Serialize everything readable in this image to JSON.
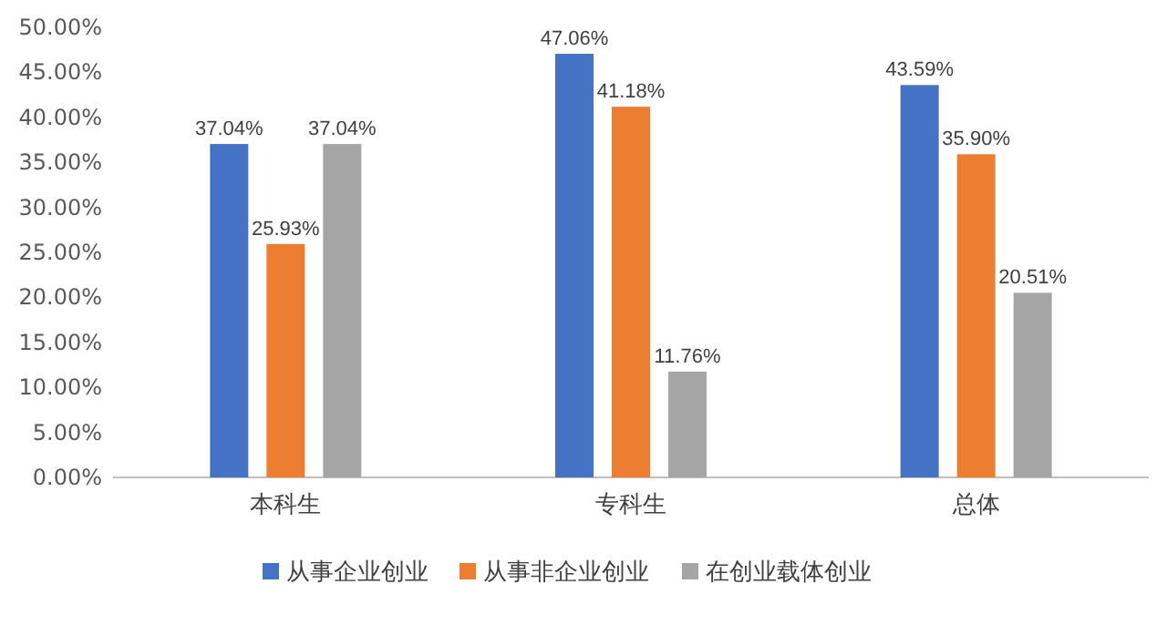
{
  "chart_data": {
    "type": "bar",
    "categories": [
      "本科生",
      "专科生",
      "总体"
    ],
    "series": [
      {
        "name": "从事企业创业",
        "color": "#4472c4",
        "values": [
          37.04,
          47.06,
          43.59
        ],
        "value_labels": [
          "37.04%",
          "47.06%",
          "43.59%"
        ]
      },
      {
        "name": "从事非企业创业",
        "color": "#ed7d31",
        "values": [
          25.93,
          41.18,
          35.9
        ],
        "value_labels": [
          "25.93%",
          "41.18%",
          "35.90%"
        ]
      },
      {
        "name": "在创业载体创业",
        "color": "#a5a5a5",
        "values": [
          37.04,
          11.76,
          20.51
        ],
        "value_labels": [
          "37.04%",
          "11.76%",
          "20.51%"
        ]
      }
    ],
    "ylim": [
      0,
      50
    ],
    "yticks": [
      {
        "value": 0,
        "label": "0.00%"
      },
      {
        "value": 5,
        "label": "5.00%"
      },
      {
        "value": 10,
        "label": "10.00%"
      },
      {
        "value": 15,
        "label": "15.00%"
      },
      {
        "value": 20,
        "label": "20.00%"
      },
      {
        "value": 25,
        "label": "25.00%"
      },
      {
        "value": 30,
        "label": "30.00%"
      },
      {
        "value": 35,
        "label": "35.00%"
      },
      {
        "value": 40,
        "label": "40.00%"
      },
      {
        "value": 45,
        "label": "45.00%"
      },
      {
        "value": 50,
        "label": "50.00%"
      }
    ],
    "legend": "bottom"
  }
}
